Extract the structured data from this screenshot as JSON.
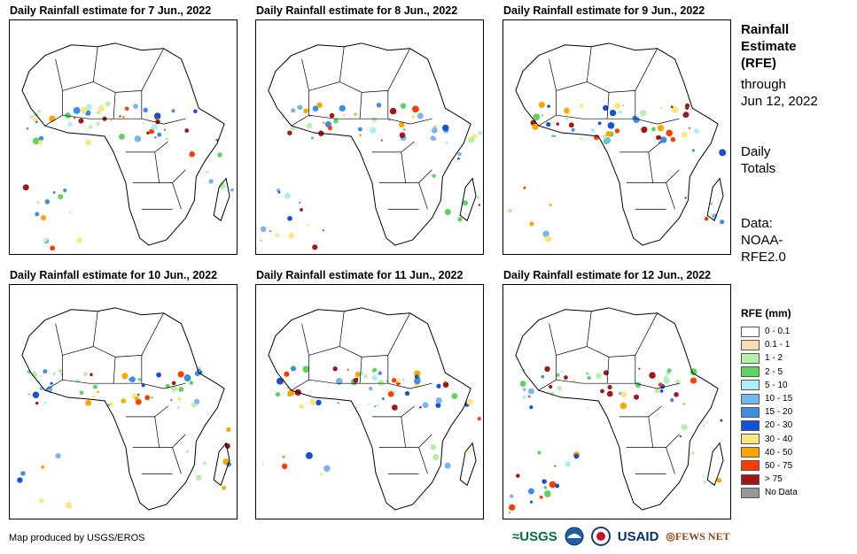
{
  "panels": [
    {
      "title": "Daily Rainfall estimate for 7 Jun., 2022"
    },
    {
      "title": "Daily Rainfall estimate for 8 Jun., 2022"
    },
    {
      "title": "Daily Rainfall estimate for 9 Jun., 2022"
    },
    {
      "title": "Daily Rainfall estimate for 10 Jun., 2022"
    },
    {
      "title": "Daily Rainfall estimate for 11 Jun., 2022"
    },
    {
      "title": "Daily Rainfall estimate for 12 Jun., 2022"
    }
  ],
  "sidebar": {
    "title_line1": "Rainfall",
    "title_line2": "Estimate",
    "title_line3": "(RFE)",
    "through_label": "through",
    "through_date": "Jun 12, 2022",
    "totals_line1": "Daily",
    "totals_line2": "Totals",
    "data_line1": "Data:",
    "data_line2": "NOAA-",
    "data_line3": "RFE2.0"
  },
  "legend": {
    "title": "RFE (mm)",
    "items": [
      {
        "label": "0 - 0.1",
        "color": "#ffffff"
      },
      {
        "label": "0.1 - 1",
        "color": "#f5deb3"
      },
      {
        "label": "1 - 2",
        "color": "#b7f0a8"
      },
      {
        "label": "2 - 5",
        "color": "#5fd35f"
      },
      {
        "label": "5 - 10",
        "color": "#aeeef4"
      },
      {
        "label": "10 - 15",
        "color": "#78b6ee"
      },
      {
        "label": "15 - 20",
        "color": "#3b8ee6"
      },
      {
        "label": "20 - 30",
        "color": "#1551d6"
      },
      {
        "label": "30 - 40",
        "color": "#ffe680"
      },
      {
        "label": "40 - 50",
        "color": "#ffa500"
      },
      {
        "label": "50 - 75",
        "color": "#ff3c00"
      },
      {
        "label": "> 75",
        "color": "#a01818"
      },
      {
        "label": "No Data",
        "color": "#999999"
      }
    ]
  },
  "footer": {
    "credit": "Map produced by USGS/EROS",
    "logos": [
      "USGS",
      "NOAA",
      "USAID",
      "FEWS NET"
    ]
  }
}
